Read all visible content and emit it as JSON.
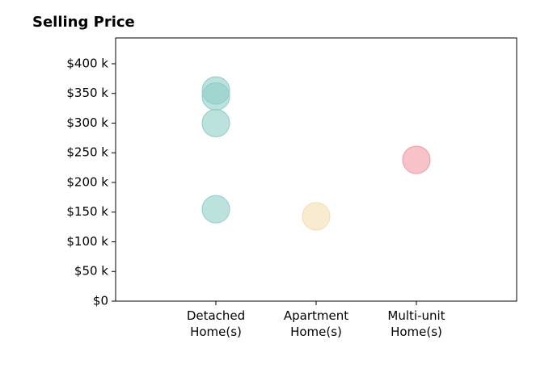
{
  "chart_data": {
    "type": "scatter",
    "title": "Selling Price",
    "categories": [
      "Detached\nHome(s)",
      "Apartment\nHome(s)",
      "Multi-unit\nHome(s)"
    ],
    "values": [
      [
        355,
        345,
        300,
        155
      ],
      [
        143
      ],
      [
        238
      ]
    ],
    "colors": [
      "#8ecfc7",
      "#f3ddb0",
      "#f29aa3"
    ],
    "ylim": [
      0,
      443.5
    ],
    "yticks": [
      {
        "value": 0,
        "label": "$0"
      },
      {
        "value": 50,
        "label": "$50 k"
      },
      {
        "value": 100,
        "label": "$100 k"
      },
      {
        "value": 150,
        "label": "$150 k"
      },
      {
        "value": 200,
        "label": "$200 k"
      },
      {
        "value": 250,
        "label": "$250 k"
      },
      {
        "value": 300,
        "label": "$300 k"
      },
      {
        "value": 350,
        "label": "$350 k"
      },
      {
        "value": 400,
        "label": "$400 k"
      }
    ]
  }
}
